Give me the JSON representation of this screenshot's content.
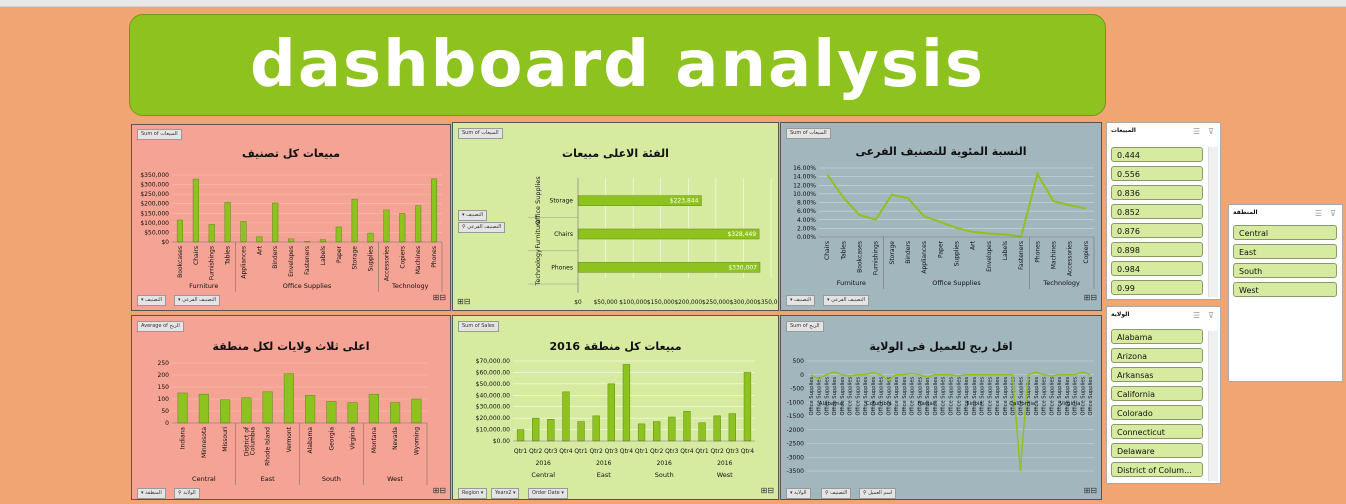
{
  "banner": {
    "title": "dashboard analysis"
  },
  "colors": {
    "banner": "#8DC21F",
    "background": "#F0A572",
    "bar": "#8DC21F",
    "pink_panel": "#F4A395",
    "green_panel": "#D6EBA0",
    "grey_panel": "#A2B6BE"
  },
  "panels": {
    "p1": {
      "title": "مبيعات كل تصنيف",
      "field": "Sum of المبيعات",
      "filter1": "التصنيف",
      "filter2": "التصنيف الفرعي"
    },
    "p2": {
      "title": "الفئة الاعلى مبيعات",
      "field": "Sum of المبيعات",
      "filter1": "التصنيف",
      "filter2": "التصنيف الفرعي"
    },
    "p3": {
      "title": "النسبة المئوية للتصنيف الفرعى",
      "field": "Sum of المبيعات",
      "filter1": "التصنيف",
      "filter2": "التصنيف الفرعي"
    },
    "p4": {
      "title": "اعلى ثلاث ولايات لكل منطقة",
      "field": "Average of الربح",
      "filter1": "المنطقة",
      "filter2": "الولاية"
    },
    "p5": {
      "title": "مبيعات كل منطقة 2016",
      "field": "Sum of Sales",
      "filter1": "Region",
      "filter2": "Years2",
      "filter3": "Order Date"
    },
    "p6": {
      "title": "اقل ربح للعميل فى الولاية",
      "field": "Sum of الربح",
      "filter1": "الولاية",
      "filter2": "التصنيف",
      "filter3": "اسم العميل"
    }
  },
  "slicers": {
    "sales": {
      "title": "المبيعات",
      "items": [
        "0.444",
        "0.556",
        "0.836",
        "0.852",
        "0.876",
        "0.898",
        "0.984",
        "0.99"
      ]
    },
    "region": {
      "title": "المنطقة",
      "items": [
        "Central",
        "East",
        "South",
        "West"
      ]
    },
    "state": {
      "title": "الولاية",
      "items": [
        "Alabama",
        "Arizona",
        "Arkansas",
        "California",
        "Colorado",
        "Connecticut",
        "Delaware",
        "District of Colum..."
      ]
    }
  },
  "chart_data": [
    {
      "type": "bar",
      "title": "مبيعات كل تصنيف",
      "categories": [
        "Bookcases",
        "Chairs",
        "Furnishings",
        "Tables",
        "Appliances",
        "Art",
        "Binders",
        "Envelopes",
        "Fasteners",
        "Labels",
        "Paper",
        "Storage",
        "Supplies",
        "Accessories",
        "Copiers",
        "Machines",
        "Phones"
      ],
      "groups": [
        {
          "name": "Furniture",
          "count": 4
        },
        {
          "name": "Office Supplies",
          "count": 9
        },
        {
          "name": "Technology",
          "count": 4
        }
      ],
      "values": [
        114880,
        328449,
        91705,
        206966,
        107532,
        27119,
        203413,
        16476,
        3024,
        12486,
        78479,
        223844,
        46674,
        167380,
        149528,
        189239,
        330007
      ],
      "yticks": [
        "$0",
        "$50,000",
        "$100,000",
        "$150,000",
        "$200,000",
        "$250,000",
        "$300,000",
        "$350,000"
      ],
      "ylim": [
        0,
        350000
      ]
    },
    {
      "type": "bar",
      "orientation": "horizontal",
      "title": "الفئة الاعلى مبيعات",
      "categories": [
        "Storage",
        "Chairs",
        "Phones"
      ],
      "groups": [
        "Office Supplies",
        "Furniture",
        "Technology"
      ],
      "values": [
        223844,
        328449,
        330007
      ],
      "data_labels": [
        "$223,844",
        "$328,449",
        "$330,007"
      ],
      "xticks": [
        "$0",
        "$50,000",
        "$100,000",
        "$150,000",
        "$200,000",
        "$250,000",
        "$300,000",
        "$350,000"
      ],
      "xlim": [
        0,
        350000
      ]
    },
    {
      "type": "line",
      "title": "النسبة المئوية للتصنيف الفرعى",
      "categories": [
        "Chairs",
        "Tables",
        "Bookcases",
        "Furnishings",
        "Storage",
        "Binders",
        "Appliances",
        "Paper",
        "Supplies",
        "Art",
        "Envelopes",
        "Labels",
        "Fasteners",
        "Phones",
        "Machines",
        "Accessories",
        "Copiers"
      ],
      "groups": [
        {
          "name": "Furniture",
          "count": 4
        },
        {
          "name": "Office Supplies",
          "count": 9
        },
        {
          "name": "Technology",
          "count": 4
        }
      ],
      "values": [
        14.5,
        9.2,
        5.1,
        4.0,
        9.8,
        9.0,
        4.8,
        3.5,
        2.1,
        1.2,
        0.8,
        0.6,
        0.1,
        14.6,
        8.3,
        7.4,
        6.6
      ],
      "yticks": [
        "0.00%",
        "2.00%",
        "4.00%",
        "6.00%",
        "8.00%",
        "10.00%",
        "12.00%",
        "14.00%",
        "16.00%"
      ],
      "ylim": [
        0,
        16
      ]
    },
    {
      "type": "bar",
      "title": "اعلى ثلاث ولايات لكل منطقة",
      "categories": [
        "Indiana",
        "Minnesota",
        "Missouri",
        "District of Columbia",
        "Rhode Island",
        "Vermont",
        "Alabama",
        "Georgia",
        "Virginia",
        "Montana",
        "Nevada",
        "Wyoming"
      ],
      "groups": [
        {
          "name": "Central",
          "count": 3
        },
        {
          "name": "East",
          "count": 3
        },
        {
          "name": "South",
          "count": 3
        },
        {
          "name": "West",
          "count": 3
        }
      ],
      "values": [
        125,
        120,
        97,
        105,
        130,
        205,
        115,
        90,
        85,
        120,
        85,
        100
      ],
      "yticks": [
        "0",
        "50",
        "100",
        "150",
        "200",
        "250"
      ],
      "ylim": [
        0,
        250
      ]
    },
    {
      "type": "bar",
      "title": "مبيعات كل منطقة 2016",
      "categories": [
        "Qtr1",
        "Qtr2",
        "Qtr3",
        "Qtr4",
        "Qtr1",
        "Qtr2",
        "Qtr3",
        "Qtr4",
        "Qtr1",
        "Qtr2",
        "Qtr3",
        "Qtr4",
        "Qtr1",
        "Qtr2",
        "Qtr3",
        "Qtr4"
      ],
      "year_labels": [
        "2016",
        "2016",
        "2016",
        "2016"
      ],
      "groups": [
        {
          "name": "Central",
          "count": 4
        },
        {
          "name": "East",
          "count": 4
        },
        {
          "name": "South",
          "count": 4
        },
        {
          "name": "West",
          "count": 4
        }
      ],
      "values": [
        10000,
        20000,
        19000,
        43000,
        17000,
        22000,
        50000,
        67000,
        15000,
        17000,
        21000,
        26000,
        16000,
        22000,
        24000,
        60000
      ],
      "yticks": [
        "$0.00",
        "$10,000.00",
        "$20,000.00",
        "$30,000.00",
        "$40,000.00",
        "$50,000.00",
        "$60,000.00",
        "$70,000.00"
      ],
      "ylim": [
        0,
        70000
      ]
    },
    {
      "type": "line",
      "title": "اقل ربح للعميل فى الولاية",
      "yticks": [
        "-3500",
        "-3000",
        "-2500",
        "-2000",
        "-1500",
        "-1000",
        "-500",
        "0",
        "500"
      ],
      "ylim": [
        -3500,
        500
      ],
      "category_label": "Office Supplies",
      "state_labels": [
        "Alabama",
        "Columbia",
        "Hawaii",
        "Ilinois",
        "California",
        "Virginia"
      ],
      "values": [
        0,
        -150,
        0,
        100,
        0,
        -50,
        0,
        0,
        80,
        0,
        -200,
        0,
        0,
        50,
        0,
        -100,
        0,
        0,
        0,
        -50,
        0,
        0,
        0,
        0,
        0,
        0,
        0,
        -3500,
        0,
        100,
        0,
        -50,
        0,
        0,
        0,
        100,
        0
      ]
    }
  ]
}
